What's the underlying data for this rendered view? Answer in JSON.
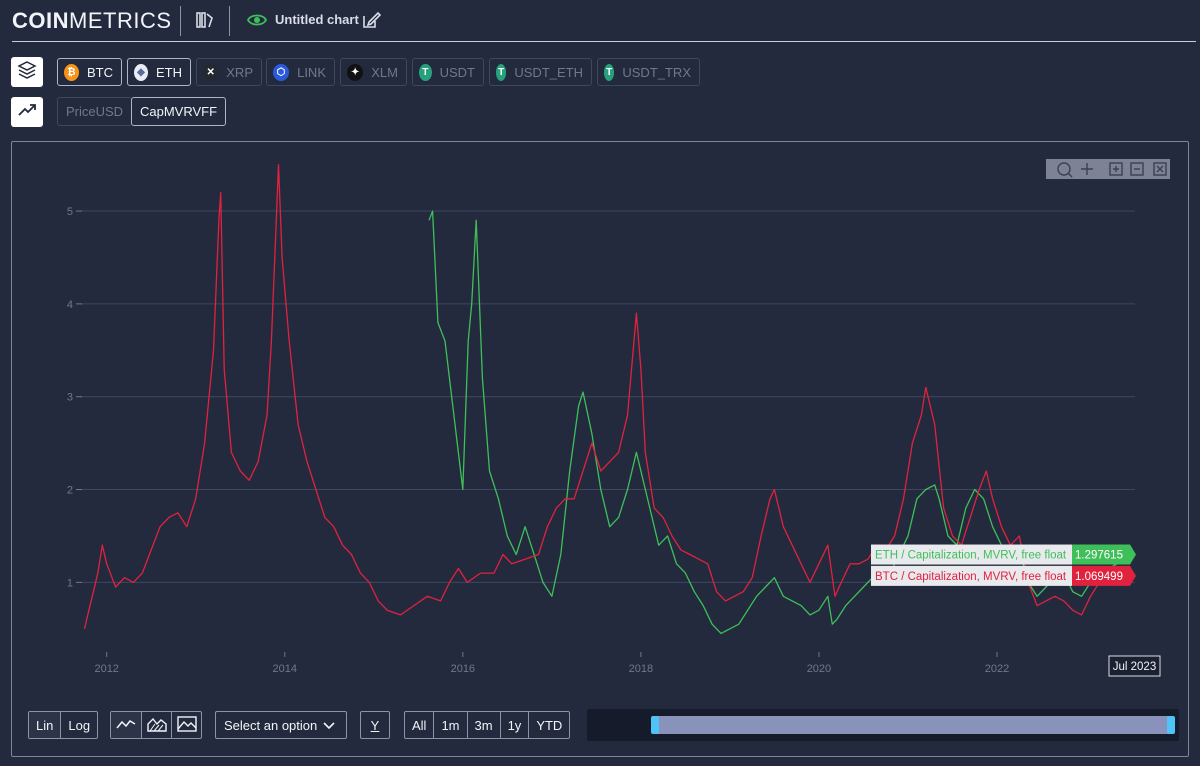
{
  "header": {
    "brand_bold": "COIN",
    "brand_light": "METRICS",
    "chart_title": "Untitled chart"
  },
  "assets": [
    {
      "label": "BTC",
      "active": true,
      "color": "#f7931a",
      "glyph": "₿"
    },
    {
      "label": "ETH",
      "active": true,
      "color": "#e8ecf5",
      "glyph": "◆"
    },
    {
      "label": "XRP",
      "active": false,
      "color": "#23292f",
      "glyph": "✕"
    },
    {
      "label": "LINK",
      "active": false,
      "color": "#2a5ada",
      "glyph": "⬡"
    },
    {
      "label": "XLM",
      "active": false,
      "color": "#111111",
      "glyph": "✦"
    },
    {
      "label": "USDT",
      "active": false,
      "color": "#26a17b",
      "glyph": "T"
    },
    {
      "label": "USDT_ETH",
      "active": false,
      "color": "#26a17b",
      "glyph": "T"
    },
    {
      "label": "USDT_TRX",
      "active": false,
      "color": "#26a17b",
      "glyph": "T"
    }
  ],
  "metrics": [
    {
      "label": "PriceUSD",
      "active": false
    },
    {
      "label": "CapMVRVFF",
      "active": true
    }
  ],
  "controls": {
    "scale": [
      "Lin",
      "Log"
    ],
    "scale_selected": "Lin",
    "select_placeholder": "Select an option",
    "y_button": "Y",
    "ranges": [
      "All",
      "1m",
      "3m",
      "1y",
      "YTD"
    ]
  },
  "chart_data": {
    "type": "line",
    "x_ticks": [
      "2012",
      "2014",
      "2016",
      "2018",
      "2020",
      "2022"
    ],
    "y_ticks": [
      1,
      2,
      3,
      4,
      5
    ],
    "xlim": [
      2011.7,
      2023.55
    ],
    "ylim": [
      0.25,
      5.55
    ],
    "grid": "horizontal",
    "crosshair_label": "Jul 2023",
    "series": [
      {
        "name": "ETH / Capitalization, MVRV, free float",
        "color": "#3fbf5a",
        "last_value": "1.297615",
        "points": [
          [
            2015.62,
            4.9
          ],
          [
            2015.66,
            5.0
          ],
          [
            2015.72,
            3.8
          ],
          [
            2015.8,
            3.6
          ],
          [
            2015.9,
            2.8
          ],
          [
            2016.0,
            2.0
          ],
          [
            2016.06,
            3.6
          ],
          [
            2016.1,
            4.0
          ],
          [
            2016.15,
            4.9
          ],
          [
            2016.22,
            3.2
          ],
          [
            2016.3,
            2.2
          ],
          [
            2016.4,
            1.9
          ],
          [
            2016.5,
            1.5
          ],
          [
            2016.6,
            1.3
          ],
          [
            2016.7,
            1.6
          ],
          [
            2016.8,
            1.3
          ],
          [
            2016.9,
            1.0
          ],
          [
            2017.0,
            0.85
          ],
          [
            2017.1,
            1.3
          ],
          [
            2017.2,
            2.2
          ],
          [
            2017.3,
            2.9
          ],
          [
            2017.35,
            3.05
          ],
          [
            2017.45,
            2.6
          ],
          [
            2017.55,
            2.0
          ],
          [
            2017.65,
            1.6
          ],
          [
            2017.75,
            1.7
          ],
          [
            2017.85,
            2.0
          ],
          [
            2017.95,
            2.4
          ],
          [
            2018.0,
            2.2
          ],
          [
            2018.1,
            1.8
          ],
          [
            2018.2,
            1.4
          ],
          [
            2018.3,
            1.5
          ],
          [
            2018.4,
            1.2
          ],
          [
            2018.5,
            1.1
          ],
          [
            2018.6,
            0.9
          ],
          [
            2018.7,
            0.75
          ],
          [
            2018.8,
            0.55
          ],
          [
            2018.9,
            0.45
          ],
          [
            2019.0,
            0.5
          ],
          [
            2019.1,
            0.55
          ],
          [
            2019.2,
            0.7
          ],
          [
            2019.3,
            0.85
          ],
          [
            2019.4,
            0.95
          ],
          [
            2019.5,
            1.05
          ],
          [
            2019.6,
            0.85
          ],
          [
            2019.7,
            0.8
          ],
          [
            2019.8,
            0.75
          ],
          [
            2019.9,
            0.65
          ],
          [
            2020.0,
            0.7
          ],
          [
            2020.1,
            0.85
          ],
          [
            2020.15,
            0.55
          ],
          [
            2020.2,
            0.6
          ],
          [
            2020.3,
            0.75
          ],
          [
            2020.4,
            0.85
          ],
          [
            2020.5,
            0.95
          ],
          [
            2020.6,
            1.05
          ],
          [
            2020.7,
            1.0
          ],
          [
            2020.8,
            1.1
          ],
          [
            2020.9,
            1.3
          ],
          [
            2021.0,
            1.5
          ],
          [
            2021.1,
            1.9
          ],
          [
            2021.2,
            2.0
          ],
          [
            2021.3,
            2.05
          ],
          [
            2021.35,
            1.9
          ],
          [
            2021.45,
            1.5
          ],
          [
            2021.55,
            1.4
          ],
          [
            2021.65,
            1.8
          ],
          [
            2021.75,
            2.0
          ],
          [
            2021.85,
            1.9
          ],
          [
            2021.95,
            1.6
          ],
          [
            2022.05,
            1.4
          ],
          [
            2022.15,
            1.3
          ],
          [
            2022.25,
            1.35
          ],
          [
            2022.35,
            1.0
          ],
          [
            2022.45,
            0.85
          ],
          [
            2022.55,
            0.95
          ],
          [
            2022.65,
            1.05
          ],
          [
            2022.75,
            1.1
          ],
          [
            2022.85,
            0.9
          ],
          [
            2022.95,
            0.85
          ],
          [
            2023.05,
            1.0
          ],
          [
            2023.15,
            1.1
          ],
          [
            2023.25,
            1.15
          ],
          [
            2023.35,
            1.2
          ],
          [
            2023.45,
            1.25
          ],
          [
            2023.5,
            1.3
          ]
        ]
      },
      {
        "name": "BTC / Capitalization, MVRV, free float",
        "color": "#e0223f",
        "last_value": "1.069499",
        "points": [
          [
            2011.75,
            0.5
          ],
          [
            2011.8,
            0.7
          ],
          [
            2011.85,
            0.9
          ],
          [
            2011.9,
            1.1
          ],
          [
            2011.95,
            1.4
          ],
          [
            2012.0,
            1.2
          ],
          [
            2012.1,
            0.95
          ],
          [
            2012.2,
            1.05
          ],
          [
            2012.3,
            1.0
          ],
          [
            2012.4,
            1.1
          ],
          [
            2012.5,
            1.35
          ],
          [
            2012.6,
            1.6
          ],
          [
            2012.7,
            1.7
          ],
          [
            2012.8,
            1.75
          ],
          [
            2012.9,
            1.6
          ],
          [
            2013.0,
            1.9
          ],
          [
            2013.1,
            2.5
          ],
          [
            2013.2,
            3.5
          ],
          [
            2013.26,
            4.9
          ],
          [
            2013.28,
            5.2
          ],
          [
            2013.32,
            3.3
          ],
          [
            2013.4,
            2.4
          ],
          [
            2013.5,
            2.2
          ],
          [
            2013.6,
            2.1
          ],
          [
            2013.7,
            2.3
          ],
          [
            2013.8,
            2.8
          ],
          [
            2013.85,
            3.6
          ],
          [
            2013.9,
            4.8
          ],
          [
            2013.93,
            5.5
          ],
          [
            2013.97,
            4.5
          ],
          [
            2014.05,
            3.6
          ],
          [
            2014.15,
            2.7
          ],
          [
            2014.25,
            2.3
          ],
          [
            2014.35,
            2.0
          ],
          [
            2014.45,
            1.7
          ],
          [
            2014.55,
            1.6
          ],
          [
            2014.65,
            1.4
          ],
          [
            2014.75,
            1.3
          ],
          [
            2014.85,
            1.1
          ],
          [
            2014.95,
            1.0
          ],
          [
            2015.05,
            0.8
          ],
          [
            2015.15,
            0.7
          ],
          [
            2015.3,
            0.65
          ],
          [
            2015.45,
            0.75
          ],
          [
            2015.6,
            0.85
          ],
          [
            2015.75,
            0.8
          ],
          [
            2015.85,
            1.0
          ],
          [
            2015.95,
            1.15
          ],
          [
            2016.05,
            1.0
          ],
          [
            2016.2,
            1.1
          ],
          [
            2016.35,
            1.1
          ],
          [
            2016.45,
            1.3
          ],
          [
            2016.55,
            1.2
          ],
          [
            2016.7,
            1.25
          ],
          [
            2016.85,
            1.3
          ],
          [
            2016.95,
            1.6
          ],
          [
            2017.05,
            1.8
          ],
          [
            2017.15,
            1.9
          ],
          [
            2017.25,
            1.9
          ],
          [
            2017.35,
            2.2
          ],
          [
            2017.45,
            2.5
          ],
          [
            2017.55,
            2.2
          ],
          [
            2017.65,
            2.3
          ],
          [
            2017.75,
            2.4
          ],
          [
            2017.85,
            2.8
          ],
          [
            2017.95,
            3.9
          ],
          [
            2018.0,
            3.3
          ],
          [
            2018.05,
            2.4
          ],
          [
            2018.15,
            1.8
          ],
          [
            2018.25,
            1.7
          ],
          [
            2018.35,
            1.5
          ],
          [
            2018.45,
            1.35
          ],
          [
            2018.55,
            1.3
          ],
          [
            2018.65,
            1.25
          ],
          [
            2018.75,
            1.2
          ],
          [
            2018.85,
            0.9
          ],
          [
            2018.95,
            0.8
          ],
          [
            2019.05,
            0.85
          ],
          [
            2019.15,
            0.9
          ],
          [
            2019.25,
            1.05
          ],
          [
            2019.35,
            1.5
          ],
          [
            2019.45,
            1.9
          ],
          [
            2019.5,
            2.0
          ],
          [
            2019.6,
            1.6
          ],
          [
            2019.7,
            1.4
          ],
          [
            2019.8,
            1.2
          ],
          [
            2019.9,
            1.0
          ],
          [
            2020.0,
            1.2
          ],
          [
            2020.1,
            1.4
          ],
          [
            2020.18,
            0.85
          ],
          [
            2020.25,
            1.0
          ],
          [
            2020.35,
            1.2
          ],
          [
            2020.45,
            1.2
          ],
          [
            2020.55,
            1.25
          ],
          [
            2020.65,
            1.4
          ],
          [
            2020.75,
            1.35
          ],
          [
            2020.85,
            1.5
          ],
          [
            2020.95,
            1.9
          ],
          [
            2021.05,
            2.5
          ],
          [
            2021.15,
            2.8
          ],
          [
            2021.2,
            3.1
          ],
          [
            2021.3,
            2.7
          ],
          [
            2021.4,
            1.8
          ],
          [
            2021.5,
            1.5
          ],
          [
            2021.6,
            1.4
          ],
          [
            2021.7,
            1.7
          ],
          [
            2021.8,
            2.0
          ],
          [
            2021.88,
            2.2
          ],
          [
            2021.95,
            1.9
          ],
          [
            2022.05,
            1.6
          ],
          [
            2022.15,
            1.4
          ],
          [
            2022.25,
            1.5
          ],
          [
            2022.35,
            1.0
          ],
          [
            2022.45,
            0.75
          ],
          [
            2022.55,
            0.8
          ],
          [
            2022.65,
            0.85
          ],
          [
            2022.75,
            0.8
          ],
          [
            2022.85,
            0.7
          ],
          [
            2022.95,
            0.65
          ],
          [
            2023.05,
            0.85
          ],
          [
            2023.15,
            1.0
          ],
          [
            2023.25,
            1.05
          ],
          [
            2023.35,
            1.0
          ],
          [
            2023.45,
            1.1
          ],
          [
            2023.5,
            1.07
          ]
        ]
      }
    ]
  }
}
